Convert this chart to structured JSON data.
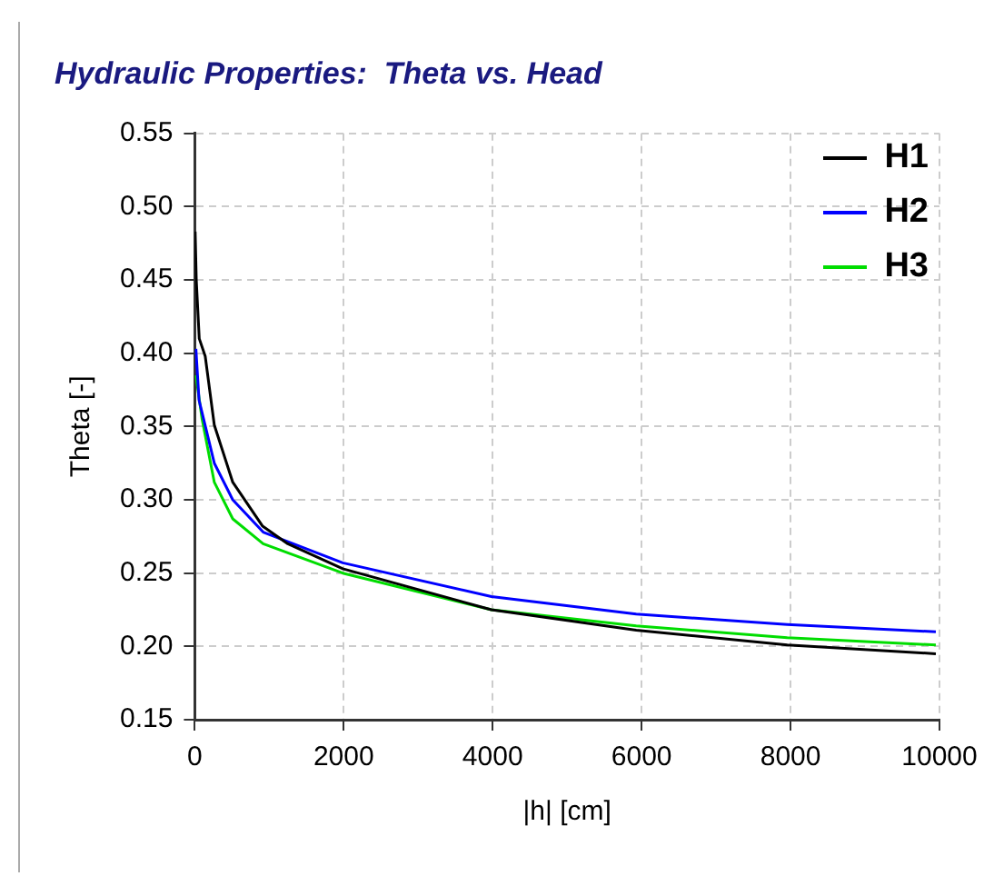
{
  "chart_data": {
    "type": "line",
    "title": "Hydraulic Properties:  Theta vs. Head",
    "xlabel": "|h| [cm]",
    "ylabel": "Theta [-]",
    "xlim": [
      0,
      10000
    ],
    "xticks": [
      0,
      2000,
      4000,
      6000,
      8000,
      10000
    ],
    "ylim": [
      0.15,
      0.55
    ],
    "yticks": [
      0.15,
      {
        "value": 0.2,
        "label": "0.20"
      },
      0.25,
      {
        "value": 0.3,
        "label": "0.30"
      },
      0.35,
      {
        "value": 0.4,
        "label": "0.40"
      },
      0.45,
      {
        "value": 0.5,
        "label": "0.50"
      },
      0.55
    ],
    "grid": true,
    "legend": "top right",
    "marker": "none",
    "line_style": "solid",
    "series": [
      {
        "name": "H1",
        "color": "#000000",
        "x": [
          5,
          20,
          60,
          140,
          262,
          510,
          911,
          1249,
          1987,
          3983,
          5928,
          7956,
          9951
        ],
        "values": [
          0.483,
          0.45,
          0.41,
          0.398,
          0.351,
          0.312,
          0.282,
          0.27,
          0.253,
          0.225,
          0.211,
          0.201,
          0.195
        ]
      },
      {
        "name": "H2",
        "color": "#0000ff",
        "x": [
          15,
          57,
          262,
          510,
          918,
          1987,
          3983,
          5928,
          7956,
          9951
        ],
        "values": [
          0.403,
          0.368,
          0.325,
          0.3,
          0.278,
          0.257,
          0.234,
          0.222,
          0.215,
          0.21
        ]
      },
      {
        "name": "H3",
        "color": "#00dd00",
        "x": [
          15,
          98,
          262,
          510,
          918,
          1987,
          3983,
          5928,
          7956,
          9951
        ],
        "values": [
          0.385,
          0.355,
          0.312,
          0.287,
          0.27,
          0.25,
          0.225,
          0.214,
          0.206,
          0.201
        ]
      }
    ]
  }
}
